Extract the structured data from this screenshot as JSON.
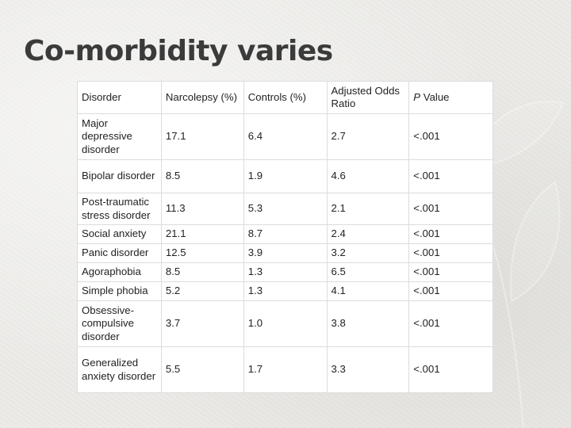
{
  "slide": {
    "title": "Co-morbidity varies"
  },
  "table": {
    "headers": [
      "Disorder",
      "Narcolepsy (%)",
      "Controls (%)",
      "Adjusted Odds Ratio"
    ],
    "p_header": {
      "italic": "P",
      "rest": " Value"
    },
    "rows": [
      {
        "disorder": "Major depressive disorder",
        "narcolepsy": "17.1",
        "controls": "6.4",
        "odds": "2.7",
        "p": "<.001"
      },
      {
        "disorder": "Bipolar disorder",
        "narcolepsy": "8.5",
        "controls": "1.9",
        "odds": "4.6",
        "p": "<.001"
      },
      {
        "disorder": "Post-traumatic stress disorder",
        "narcolepsy": "11.3",
        "controls": "5.3",
        "odds": "2.1",
        "p": "<.001"
      },
      {
        "disorder": "Social anxiety",
        "narcolepsy": "21.1",
        "controls": "8.7",
        "odds": "2.4",
        "p": "<.001"
      },
      {
        "disorder": "Panic disorder",
        "narcolepsy": "12.5",
        "controls": "3.9",
        "odds": "3.2",
        "p": "<.001"
      },
      {
        "disorder": "Agoraphobia",
        "narcolepsy": "8.5",
        "controls": "1.3",
        "odds": "6.5",
        "p": "<.001"
      },
      {
        "disorder": "Simple phobia",
        "narcolepsy": "5.2",
        "controls": "1.3",
        "odds": "4.1",
        "p": "<.001"
      },
      {
        "disorder": "Obsessive-compulsive disorder",
        "narcolepsy": "3.7",
        "controls": "1.0",
        "odds": "3.8",
        "p": "<.001"
      },
      {
        "disorder": "Generalized anxiety disorder",
        "narcolepsy": "5.5",
        "controls": "1.7",
        "odds": "3.3",
        "p": "<.001"
      }
    ]
  }
}
